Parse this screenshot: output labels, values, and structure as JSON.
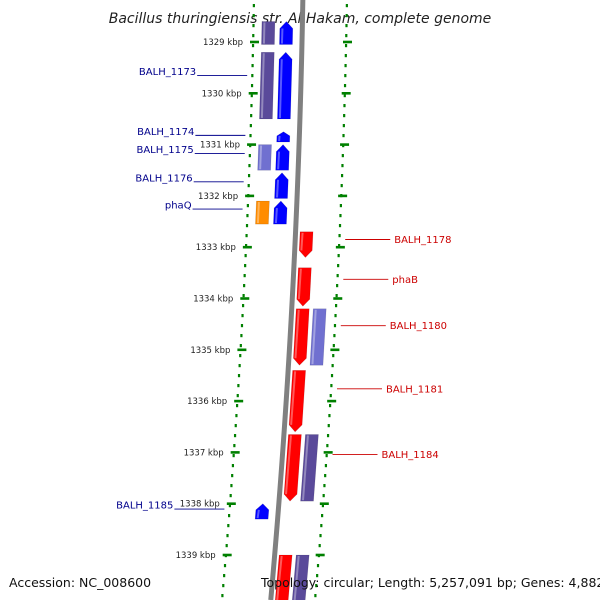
{
  "title": "Bacillus thuringiensis str. Al Hakam, complete genome",
  "footer": {
    "accession": "Accession: NC_008600",
    "topology": "Topology: circular; Length: 5,257,091 bp; Genes: 4,882"
  },
  "colors": {
    "forward": "#0000ff",
    "reverse": "#ff0000",
    "cds_forward": "#5a4a9a",
    "cds_light": "#7070d0",
    "phaQ": "#ff8c00",
    "backbone": "#808080",
    "ruler": "#008000",
    "label_forward": "#00008b",
    "label_reverse": "#cc0000"
  },
  "axis": {
    "unit": "kbp",
    "ticks": [
      "1329 kbp",
      "1330 kbp",
      "1331 kbp",
      "1332 kbp",
      "1333 kbp",
      "1334 kbp",
      "1335 kbp",
      "1336 kbp",
      "1337 kbp",
      "1338 kbp",
      "1339 kbp"
    ]
  },
  "genes": [
    {
      "label": "",
      "strand": "+",
      "track": "gene",
      "start": 1328.6,
      "end": 1329.05
    },
    {
      "label": "",
      "strand": "+",
      "track": "cds",
      "start": 1328.6,
      "end": 1329.05
    },
    {
      "label": "BALH_1173",
      "strand": "+",
      "track": "gene",
      "start": 1329.2,
      "end": 1330.5
    },
    {
      "label": "",
      "strand": "+",
      "track": "cds",
      "start": 1329.2,
      "end": 1330.5
    },
    {
      "label": "BALH_1174",
      "strand": "+",
      "track": "gene",
      "start": 1330.75,
      "end": 1330.95
    },
    {
      "label": "BALH_1175",
      "strand": "+",
      "track": "gene",
      "start": 1331.0,
      "end": 1331.5
    },
    {
      "label": "",
      "strand": "+",
      "track": "cds_light",
      "start": 1331.0,
      "end": 1331.5
    },
    {
      "label": "BALH_1176",
      "strand": "+",
      "track": "gene",
      "start": 1331.55,
      "end": 1332.05
    },
    {
      "label": "phaQ",
      "strand": "+",
      "track": "gene",
      "start": 1332.1,
      "end": 1332.55
    },
    {
      "label": "",
      "strand": "+",
      "track": "cds_phaQ",
      "start": 1332.1,
      "end": 1332.55
    },
    {
      "label": "BALH_1178",
      "strand": "-",
      "track": "gene",
      "start": 1332.7,
      "end": 1333.2
    },
    {
      "label": "phaB",
      "strand": "-",
      "track": "gene",
      "start": 1333.4,
      "end": 1334.15
    },
    {
      "label": "BALH_1180",
      "strand": "-",
      "track": "gene",
      "start": 1334.2,
      "end": 1335.3
    },
    {
      "label": "",
      "strand": "-",
      "track": "cds_light",
      "start": 1334.2,
      "end": 1335.3
    },
    {
      "label": "BALH_1181",
      "strand": "-",
      "track": "gene",
      "start": 1335.4,
      "end": 1336.6
    },
    {
      "label": "BALH_1184",
      "strand": "-",
      "track": "gene",
      "start": 1336.65,
      "end": 1337.95
    },
    {
      "label": "",
      "strand": "-",
      "track": "cds",
      "start": 1336.65,
      "end": 1337.95
    },
    {
      "label": "BALH_1185",
      "strand": "+",
      "track": "gene",
      "start": 1338.0,
      "end": 1338.3
    },
    {
      "label": "",
      "strand": "-",
      "track": "gene",
      "start": 1339.0,
      "end": 1340.2
    },
    {
      "label": "",
      "strand": "-",
      "track": "cds",
      "start": 1339.0,
      "end": 1340.2
    }
  ]
}
